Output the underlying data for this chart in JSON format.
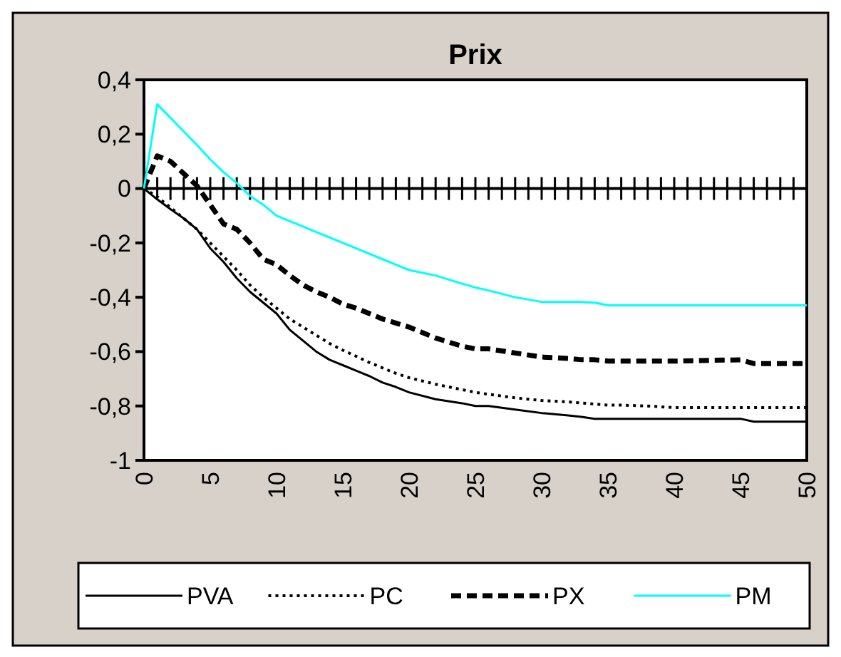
{
  "chart_data": {
    "type": "line",
    "title": "Prix",
    "x": [
      0,
      1,
      2,
      3,
      4,
      5,
      6,
      7,
      8,
      9,
      10,
      11,
      12,
      13,
      14,
      15,
      16,
      17,
      18,
      19,
      20,
      22,
      24,
      25,
      26,
      28,
      30,
      32,
      33,
      34,
      35,
      36,
      38,
      40,
      45,
      46,
      50
    ],
    "series": [
      {
        "name": "PVA",
        "color": "#000000",
        "line_style": "solid",
        "values": [
          0,
          -0.04,
          -0.076,
          -0.11,
          -0.15,
          -0.22,
          -0.27,
          -0.33,
          -0.38,
          -0.42,
          -0.46,
          -0.52,
          -0.56,
          -0.6,
          -0.63,
          -0.65,
          -0.67,
          -0.69,
          -0.714,
          -0.73,
          -0.75,
          -0.775,
          -0.79,
          -0.8,
          -0.8,
          -0.813,
          -0.826,
          -0.835,
          -0.84,
          -0.847,
          -0.847,
          -0.847,
          -0.847,
          -0.847,
          -0.847,
          -0.858,
          -0.858
        ]
      },
      {
        "name": "PC",
        "color": "#000000",
        "line_style": "dotted",
        "values": [
          0,
          -0.03,
          -0.07,
          -0.11,
          -0.15,
          -0.2,
          -0.25,
          -0.3,
          -0.355,
          -0.4,
          -0.44,
          -0.48,
          -0.51,
          -0.54,
          -0.57,
          -0.595,
          -0.617,
          -0.64,
          -0.66,
          -0.68,
          -0.696,
          -0.72,
          -0.74,
          -0.75,
          -0.757,
          -0.77,
          -0.78,
          -0.785,
          -0.789,
          -0.793,
          -0.797,
          -0.797,
          -0.8,
          -0.806,
          -0.806,
          -0.806,
          -0.806
        ]
      },
      {
        "name": "PX",
        "color": "#000000",
        "line_style": "dashed",
        "values": [
          0,
          0.12,
          0.1,
          0.055,
          0.01,
          -0.06,
          -0.13,
          -0.15,
          -0.2,
          -0.26,
          -0.28,
          -0.32,
          -0.355,
          -0.38,
          -0.4,
          -0.425,
          -0.44,
          -0.46,
          -0.48,
          -0.495,
          -0.51,
          -0.55,
          -0.58,
          -0.59,
          -0.59,
          -0.605,
          -0.62,
          -0.625,
          -0.63,
          -0.63,
          -0.635,
          -0.635,
          -0.635,
          -0.635,
          -0.63,
          -0.644,
          -0.644
        ]
      },
      {
        "name": "PM",
        "color": "#00ffff",
        "line_style": "solid",
        "values": [
          0,
          0.31,
          0.26,
          0.21,
          0.16,
          0.107,
          0.06,
          0.02,
          -0.027,
          -0.06,
          -0.1,
          -0.12,
          -0.14,
          -0.16,
          -0.18,
          -0.2,
          -0.22,
          -0.24,
          -0.26,
          -0.28,
          -0.3,
          -0.32,
          -0.35,
          -0.364,
          -0.375,
          -0.4,
          -0.417,
          -0.417,
          -0.417,
          -0.42,
          -0.43,
          -0.43,
          -0.43,
          -0.43,
          -0.43,
          -0.43,
          -0.43
        ]
      }
    ],
    "xlim": [
      0,
      50
    ],
    "xticks": [
      0,
      5,
      10,
      15,
      20,
      25,
      30,
      35,
      40,
      45,
      50
    ],
    "ylim": [
      -1,
      0.4
    ],
    "yticks": [
      {
        "value": -1,
        "label": "-1"
      },
      {
        "value": -0.8,
        "label": "-0,8"
      },
      {
        "value": -0.6,
        "label": "-0,6"
      },
      {
        "value": -0.4,
        "label": "-0,4"
      },
      {
        "value": -0.2,
        "label": "-0,2"
      },
      {
        "value": 0,
        "label": "0"
      },
      {
        "value": 0.2,
        "label": "0,2"
      },
      {
        "value": 0.4,
        "label": "0,4"
      }
    ],
    "legend": "bottom",
    "marker": "none"
  }
}
